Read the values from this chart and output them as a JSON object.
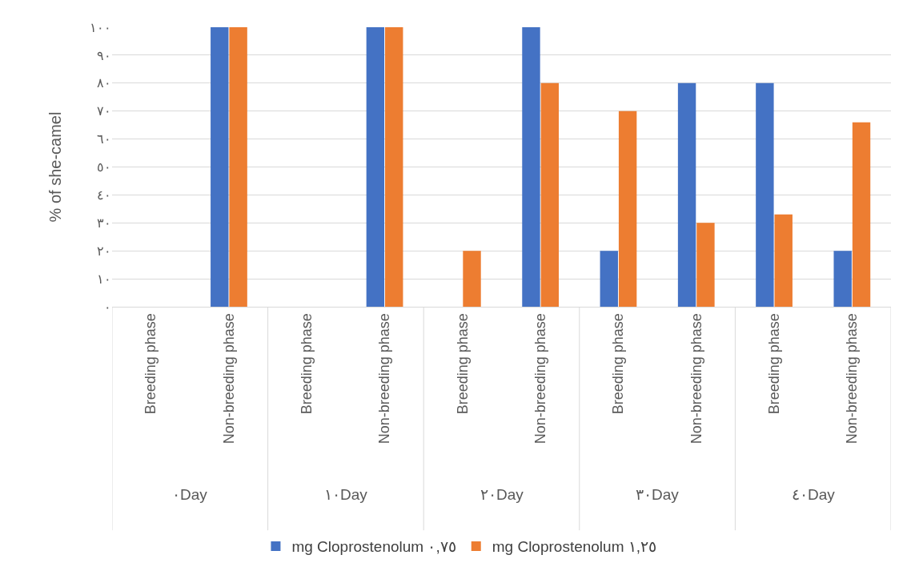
{
  "chart_data": {
    "type": "bar",
    "ylabel": "% of she-camel",
    "categories": [
      "Breeding phase",
      "Non-breeding phase",
      "Breeding phase",
      "Non-breeding phase",
      "Breeding phase",
      "Non-breeding phase",
      "Breeding phase",
      "Non-breeding phase",
      "Breeding phase",
      "Non-breeding phase"
    ],
    "annotations": [
      "٠Day",
      "١٠Day",
      "٢٠Day",
      "٣٠Day",
      "٤٠Day"
    ],
    "series": [
      {
        "name": "mg Cloprostenolum ٠,٧٥",
        "color": "#4472c4",
        "values": [
          0,
          100,
          0,
          100,
          0,
          100,
          20,
          80,
          80,
          20
        ]
      },
      {
        "name": "mg Cloprostenolum ١,٢٥",
        "color": "#ed7d31",
        "values": [
          0,
          100,
          0,
          100,
          20,
          80,
          70,
          30,
          33,
          66
        ]
      }
    ],
    "ylim": [
      0,
      100
    ],
    "yticks": [
      {
        "value": 0,
        "label": "٠"
      },
      {
        "value": 10,
        "label": "١٠"
      },
      {
        "value": 20,
        "label": "٢٠"
      },
      {
        "value": 30,
        "label": "٣٠"
      },
      {
        "value": 40,
        "label": "٤٠"
      },
      {
        "value": 50,
        "label": "٥٠"
      },
      {
        "value": 60,
        "label": "٦٠"
      },
      {
        "value": 70,
        "label": "٧٠"
      },
      {
        "value": 80,
        "label": "٨٠"
      },
      {
        "value": 90,
        "label": "٩٠"
      },
      {
        "value": 100,
        "label": "١٠٠"
      }
    ],
    "grid": "y",
    "legend": "bottom"
  }
}
